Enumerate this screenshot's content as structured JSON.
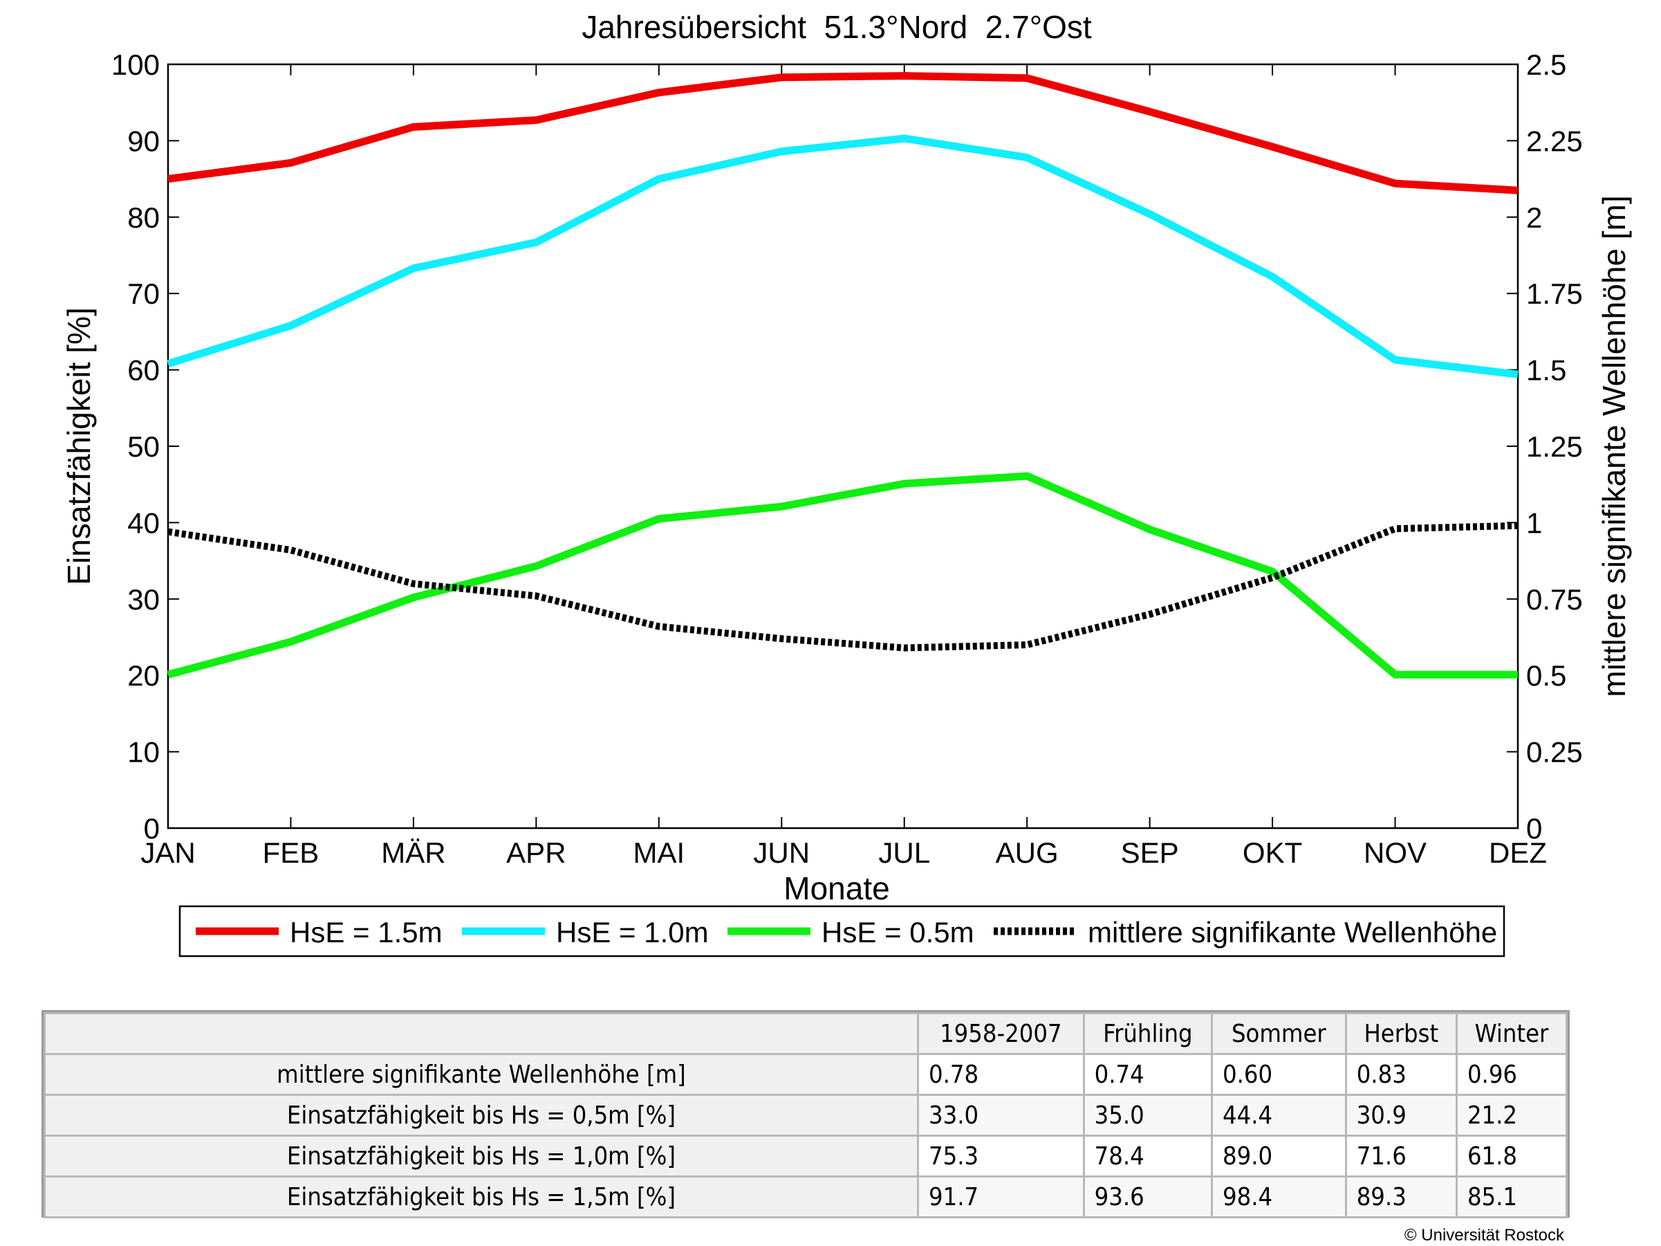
{
  "chart_data": {
    "type": "line",
    "title": "Jahresübersicht  51.3°Nord  2.7°Ost",
    "xlabel": "Monate",
    "ylabel": "Einsatzfähigkeit [%]",
    "ylabel_right": "mittlere signifikante Wellenhöhe [m]",
    "categories": [
      "JAN",
      "FEB",
      "MÄR",
      "APR",
      "MAI",
      "JUN",
      "JUL",
      "AUG",
      "SEP",
      "OKT",
      "NOV",
      "DEZ"
    ],
    "ylim": [
      0,
      100
    ],
    "ylim_right": [
      0,
      2.5
    ],
    "yticks": [
      "0",
      "10",
      "20",
      "30",
      "40",
      "50",
      "60",
      "70",
      "80",
      "90",
      "100"
    ],
    "yticks_right": [
      "0",
      "0.25",
      "0.5",
      "0.75",
      "1",
      "1.25",
      "1.5",
      "1.75",
      "2",
      "2.25",
      "2.5"
    ],
    "grid": false,
    "legend_position": "bottom",
    "series": [
      {
        "name": "HsE = 1.5m",
        "axis": "left",
        "color": "#ee0000",
        "style": "solid",
        "values": [
          85.0,
          87.1,
          91.8,
          92.7,
          96.3,
          98.3,
          98.5,
          98.2,
          93.8,
          89.2,
          84.4,
          83.5
        ]
      },
      {
        "name": "HsE = 1.0m",
        "axis": "left",
        "color": "#11eeff",
        "style": "solid",
        "values": [
          60.8,
          65.8,
          73.3,
          76.7,
          85.0,
          88.6,
          90.3,
          87.8,
          80.4,
          72.2,
          61.3,
          59.4
        ]
      },
      {
        "name": "HsE = 0.5m",
        "axis": "left",
        "color": "#11ee11",
        "style": "solid",
        "values": [
          20.1,
          24.4,
          30.2,
          34.3,
          40.5,
          42.1,
          45.1,
          46.1,
          39.1,
          33.6,
          20.1,
          20.1
        ]
      },
      {
        "name": "mittlere signifikante Wellenhöhe",
        "axis": "right",
        "color": "#000000",
        "style": "dotted",
        "values": [
          0.97,
          0.91,
          0.8,
          0.76,
          0.66,
          0.62,
          0.59,
          0.6,
          0.7,
          0.82,
          0.98,
          0.99
        ]
      }
    ]
  },
  "table": {
    "headers": [
      "",
      "1958-2007",
      "Frühling",
      "Sommer",
      "Herbst",
      "Winter"
    ],
    "rows": [
      {
        "label": "mittlere signifikante Wellenhöhe [m]",
        "values": [
          "0.78",
          "0.74",
          "0.60",
          "0.83",
          "0.96"
        ]
      },
      {
        "label": "Einsatzfähigkeit bis Hs = 0,5m [%]",
        "values": [
          "33.0",
          "35.0",
          "44.4",
          "30.9",
          "21.2"
        ]
      },
      {
        "label": "Einsatzfähigkeit bis Hs = 1,0m [%]",
        "values": [
          "75.3",
          "78.4",
          "89.0",
          "71.6",
          "61.8"
        ]
      },
      {
        "label": "Einsatzfähigkeit bis Hs = 1,5m [%]",
        "values": [
          "91.7",
          "93.6",
          "98.4",
          "89.3",
          "85.1"
        ]
      }
    ]
  },
  "copyright": "© Universität Rostock"
}
